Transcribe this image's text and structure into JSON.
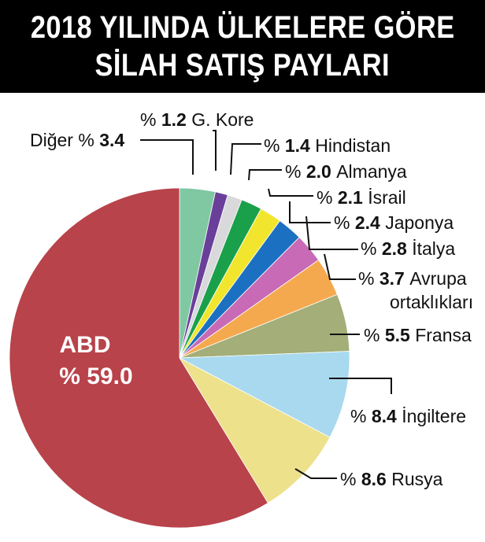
{
  "title": {
    "line1": "2018 YILINDA ÜLKELERE GÖRE",
    "line2": "SİLAH SATIŞ PAYLARI"
  },
  "chart_data": {
    "type": "pie",
    "unit_prefix": "%",
    "start": "12 o'clock, clockwise",
    "slices": [
      {
        "label": "Diğer",
        "value": 3.4,
        "color": "#7fc8a2",
        "label_lines": [
          "Diğer"
        ],
        "label_side": "left"
      },
      {
        "label": "G. Kore",
        "value": 1.2,
        "color": "#6a3f9a",
        "label_lines": [
          "G. Kore"
        ]
      },
      {
        "label": "Hindistan",
        "value": 1.4,
        "color": "#d9d9dc",
        "label_lines": [
          "Hindistan"
        ]
      },
      {
        "label": "Almanya",
        "value": 2.0,
        "color": "#1aa04a",
        "label_lines": [
          "Almanya"
        ]
      },
      {
        "label": "İsrail",
        "value": 2.1,
        "color": "#f1e62d",
        "label_lines": [
          "İsrail"
        ]
      },
      {
        "label": "Japonya",
        "value": 2.4,
        "color": "#1c70c2",
        "label_lines": [
          "Japonya"
        ]
      },
      {
        "label": "İtalya",
        "value": 2.8,
        "color": "#c86ab5",
        "label_lines": [
          "İtalya"
        ]
      },
      {
        "label": "Avrupa ortaklıkları",
        "value": 3.7,
        "color": "#f5a94f",
        "label_lines": [
          "Avrupa",
          "ortaklıkları"
        ]
      },
      {
        "label": "Fransa",
        "value": 5.5,
        "color": "#a3ae78",
        "label_lines": [
          "Fransa"
        ]
      },
      {
        "label": "İngiltere",
        "value": 8.4,
        "color": "#a8d9ee",
        "label_lines": [
          "İngiltere"
        ]
      },
      {
        "label": "Rusya",
        "value": 8.6,
        "color": "#ede18c",
        "label_lines": [
          "Rusya"
        ]
      },
      {
        "label": "ABD",
        "value": 59.0,
        "color": "#b8434b",
        "label_lines": [
          "ABD"
        ],
        "label_inside": true
      }
    ]
  }
}
